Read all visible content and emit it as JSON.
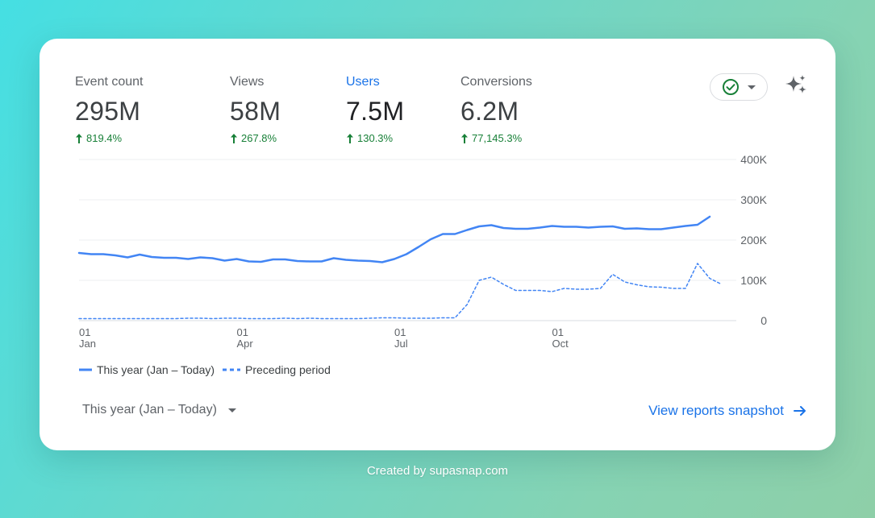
{
  "metrics": [
    {
      "label": "Event count",
      "value": "295M",
      "change": "819.4%"
    },
    {
      "label": "Views",
      "value": "58M",
      "change": "267.8%"
    },
    {
      "label": "Users",
      "value": "7.5M",
      "change": "130.3%",
      "active": true
    },
    {
      "label": "Conversions",
      "value": "6.2M",
      "change": "77,145.3%"
    }
  ],
  "colors": {
    "accent": "#1a73e8",
    "line": "#4285f4",
    "positive": "#188038",
    "status_ok": "#188038"
  },
  "status_chip": {
    "icon": "check-circle-icon"
  },
  "chart_data": {
    "type": "line",
    "y_tick_labels": [
      "400K",
      "300K",
      "200K",
      "100K",
      "0"
    ],
    "ylim": [
      0,
      400000
    ],
    "x_ticks": [
      {
        "day": "01",
        "month": "Jan",
        "week": 0
      },
      {
        "day": "01",
        "month": "Apr",
        "week": 13
      },
      {
        "day": "01",
        "month": "Jul",
        "week": 26
      },
      {
        "day": "01",
        "month": "Oct",
        "week": 39
      }
    ],
    "series": [
      {
        "name": "This year (Jan – Today)",
        "style": "solid",
        "values": [
          168000,
          165000,
          165000,
          162000,
          157000,
          164000,
          158000,
          156000,
          156000,
          153000,
          157000,
          155000,
          149000,
          153000,
          147000,
          146000,
          152000,
          152000,
          148000,
          147000,
          147000,
          155000,
          151000,
          149000,
          148000,
          145000,
          153000,
          165000,
          183000,
          202000,
          215000,
          215000,
          225000,
          234000,
          237000,
          230000,
          228000,
          228000,
          231000,
          235000,
          233000,
          233000,
          231000,
          233000,
          234000,
          228000,
          229000,
          227000,
          227000,
          231000,
          235000,
          238000,
          258000
        ]
      },
      {
        "name": "Preceding period",
        "style": "dashed",
        "values": [
          5000,
          5000,
          5000,
          5000,
          5000,
          5000,
          5000,
          5000,
          5000,
          6000,
          6000,
          5000,
          6000,
          6000,
          5000,
          5000,
          5000,
          6000,
          5000,
          6000,
          5000,
          5000,
          5000,
          5000,
          6000,
          7000,
          7000,
          6000,
          6000,
          6000,
          7000,
          7000,
          40000,
          100000,
          108000,
          90000,
          75000,
          75000,
          75000,
          72000,
          80000,
          78000,
          78000,
          80000,
          115000,
          96000,
          89000,
          84000,
          83000,
          80000,
          80000,
          142000,
          105000,
          90000
        ]
      }
    ]
  },
  "legend": {
    "this_year": "This year (Jan – Today)",
    "preceding": "Preceding period"
  },
  "date_range": {
    "label": "This year (Jan – Today)"
  },
  "snapshot_link": {
    "label": "View reports snapshot"
  },
  "credit": "Created by supasnap.com"
}
